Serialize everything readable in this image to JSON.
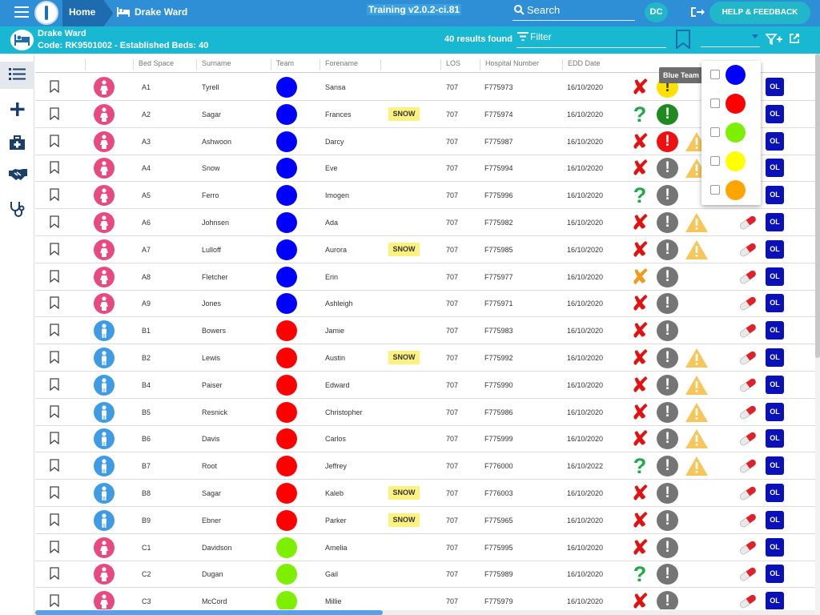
{
  "header": {
    "home_label": "Home",
    "ward_crumb": "Drake Ward",
    "environment": "Training v2.0.2-ci.81",
    "search_placeholder": "Search",
    "user_initials": "DC",
    "help_label": "HELP & FEEDBACK"
  },
  "ward": {
    "name": "Drake Ward",
    "code_line": "Code: RK9501002 - Established Beds: 40",
    "results": "40 results found",
    "filter_placeholder": "Filter"
  },
  "columns": [
    "Bed Space",
    "Surname",
    "Team",
    "Forename",
    "LOS",
    "Hospital Number",
    "EDD Date"
  ],
  "colors": {
    "female": "#e84a7f",
    "male": "#3f9be4",
    "blue": "#0000ff",
    "red": "#ff0000",
    "green": "#7cf000",
    "yellow": "#ffff00",
    "orange": "#ffa500",
    "status_red": "#e31212",
    "status_green": "#20a84a",
    "status_orange": "#f29a1c",
    "alert_yellow": "#ffe000",
    "alert_green": "#1f8a1f",
    "alert_red": "#ee1111",
    "alert_grey": "#757575"
  },
  "tooltip": "Blue Team",
  "team_options": [
    {
      "color": "#0000ff",
      "icon": "blue-team-swatch"
    },
    {
      "color": "#ff0000",
      "icon": "red-team-swatch"
    },
    {
      "color": "#7cf000",
      "icon": "green-team-swatch"
    },
    {
      "color": "#ffff00",
      "icon": "yellow-team-swatch"
    },
    {
      "color": "#ffa500",
      "icon": "orange-team-swatch"
    }
  ],
  "rows": [
    {
      "bed": "A1",
      "surname": "Tyrell",
      "forename": "Sansa",
      "gender": "female",
      "team": "blue",
      "snow": "",
      "los": "707",
      "hosp": "F775973",
      "edd": "16/10/2020",
      "status": "x",
      "alert": "yellow",
      "warn": false,
      "pill": false
    },
    {
      "bed": "A2",
      "surname": "Sagar",
      "forename": "Frances",
      "gender": "female",
      "team": "blue",
      "snow": "SNOW",
      "los": "707",
      "hosp": "F775974",
      "edd": "16/10/2020",
      "status": "q",
      "alert": "green",
      "warn": false,
      "pill": false
    },
    {
      "bed": "A3",
      "surname": "Ashwoon",
      "forename": "Darcy",
      "gender": "female",
      "team": "blue",
      "snow": "",
      "los": "707",
      "hosp": "F775987",
      "edd": "16/10/2020",
      "status": "x",
      "alert": "red",
      "warn": true,
      "pill": false
    },
    {
      "bed": "A4",
      "surname": "Snow",
      "forename": "Eve",
      "gender": "female",
      "team": "blue",
      "snow": "",
      "los": "707",
      "hosp": "F775994",
      "edd": "16/10/2020",
      "status": "x",
      "alert": "grey",
      "warn": true,
      "pill": false
    },
    {
      "bed": "A5",
      "surname": "Ferro",
      "forename": "Imogen",
      "gender": "female",
      "team": "blue",
      "snow": "",
      "los": "707",
      "hosp": "F775996",
      "edd": "16/10/2020",
      "status": "q",
      "alert": "grey",
      "warn": false,
      "pill": false
    },
    {
      "bed": "A6",
      "surname": "Johnsen",
      "forename": "Ada",
      "gender": "female",
      "team": "blue",
      "snow": "",
      "los": "707",
      "hosp": "F775982",
      "edd": "16/10/2020",
      "status": "x",
      "alert": "grey",
      "warn": true,
      "pill": true
    },
    {
      "bed": "A7",
      "surname": "Lulloff",
      "forename": "Aurora",
      "gender": "female",
      "team": "blue",
      "snow": "SNOW",
      "los": "707",
      "hosp": "F775985",
      "edd": "16/10/2020",
      "status": "x",
      "alert": "grey",
      "warn": true,
      "pill": true
    },
    {
      "bed": "A8",
      "surname": "Fletcher",
      "forename": "Erin",
      "gender": "female",
      "team": "blue",
      "snow": "",
      "los": "707",
      "hosp": "F775977",
      "edd": "16/10/2020",
      "status": "xo",
      "alert": "grey",
      "warn": false,
      "pill": true
    },
    {
      "bed": "A9",
      "surname": "Jones",
      "forename": "Ashleigh",
      "gender": "female",
      "team": "blue",
      "snow": "",
      "los": "707",
      "hosp": "F775971",
      "edd": "16/10/2020",
      "status": "x",
      "alert": "grey",
      "warn": false,
      "pill": true
    },
    {
      "bed": "B1",
      "surname": "Bowers",
      "forename": "Jamie",
      "gender": "male",
      "team": "red",
      "snow": "",
      "los": "707",
      "hosp": "F775983",
      "edd": "16/10/2020",
      "status": "x",
      "alert": "grey",
      "warn": false,
      "pill": true
    },
    {
      "bed": "B2",
      "surname": "Lewis",
      "forename": "Austin",
      "gender": "male",
      "team": "red",
      "snow": "SNOW",
      "los": "707",
      "hosp": "F775992",
      "edd": "16/10/2020",
      "status": "x",
      "alert": "grey",
      "warn": true,
      "pill": true
    },
    {
      "bed": "B4",
      "surname": "Paiser",
      "forename": "Edward",
      "gender": "male",
      "team": "red",
      "snow": "",
      "los": "707",
      "hosp": "F775990",
      "edd": "16/10/2020",
      "status": "x",
      "alert": "grey",
      "warn": true,
      "pill": true
    },
    {
      "bed": "B5",
      "surname": "Resnick",
      "forename": "Christopher",
      "gender": "male",
      "team": "red",
      "snow": "",
      "los": "707",
      "hosp": "F775986",
      "edd": "16/10/2020",
      "status": "x",
      "alert": "grey",
      "warn": true,
      "pill": true
    },
    {
      "bed": "B6",
      "surname": "Davis",
      "forename": "Carlos",
      "gender": "male",
      "team": "red",
      "snow": "",
      "los": "707",
      "hosp": "F775999",
      "edd": "16/10/2020",
      "status": "x",
      "alert": "grey",
      "warn": true,
      "pill": true
    },
    {
      "bed": "B7",
      "surname": "Root",
      "forename": "Jeffrey",
      "gender": "male",
      "team": "red",
      "snow": "",
      "los": "707",
      "hosp": "F776000",
      "edd": "16/10/2022",
      "status": "q",
      "alert": "grey",
      "warn": true,
      "pill": true
    },
    {
      "bed": "B8",
      "surname": "Sagar",
      "forename": "Kaleb",
      "gender": "male",
      "team": "red",
      "snow": "SNOW",
      "los": "707",
      "hosp": "F776003",
      "edd": "16/10/2020",
      "status": "x",
      "alert": "grey",
      "warn": false,
      "pill": true
    },
    {
      "bed": "B9",
      "surname": "Ebner",
      "forename": "Parker",
      "gender": "male",
      "team": "red",
      "snow": "SNOW",
      "los": "707",
      "hosp": "F775965",
      "edd": "16/10/2020",
      "status": "x",
      "alert": "grey",
      "warn": false,
      "pill": true
    },
    {
      "bed": "C1",
      "surname": "Davidson",
      "forename": "Amelia",
      "gender": "female",
      "team": "green",
      "snow": "",
      "los": "707",
      "hosp": "F775995",
      "edd": "16/10/2020",
      "status": "x",
      "alert": "grey",
      "warn": false,
      "pill": true
    },
    {
      "bed": "C2",
      "surname": "Dugan",
      "forename": "Gail",
      "gender": "female",
      "team": "green",
      "snow": "",
      "los": "707",
      "hosp": "F775989",
      "edd": "16/10/2020",
      "status": "q",
      "alert": "grey",
      "warn": false,
      "pill": true
    },
    {
      "bed": "C3",
      "surname": "McCord",
      "forename": "Millie",
      "gender": "female",
      "team": "green",
      "snow": "",
      "los": "707",
      "hosp": "F775979",
      "edd": "16/10/2020",
      "status": "x",
      "alert": "grey",
      "warn": false,
      "pill": true
    }
  ],
  "row_action": "OL",
  "icons": {
    "menu": "hamburger-icon",
    "bed": "bed-icon",
    "search": "search-icon",
    "logout": "logout-icon",
    "filter": "filter-icon",
    "bookmark": "bookmark-icon",
    "add_filter": "add-filter-icon",
    "open_new": "open-in-new-icon",
    "nav": [
      "list-icon",
      "plus-icon",
      "medical-kit-icon",
      "handshake-icon",
      "stethoscope-icon"
    ]
  }
}
